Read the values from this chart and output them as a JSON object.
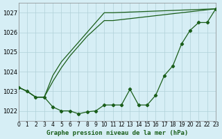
{
  "title": "Graphe pression niveau de la mer (hPa)",
  "background_color": "#d6eef5",
  "grid_color": "#b0d0d8",
  "line_color": "#1a5e1a",
  "x_labels": [
    "0",
    "1",
    "2",
    "3",
    "4",
    "5",
    "6",
    "7",
    "8",
    "9",
    "10",
    "11",
    "12",
    "13",
    "14",
    "15",
    "16",
    "17",
    "18",
    "19",
    "20",
    "21",
    "22",
    "23"
  ],
  "xlim": [
    0,
    23
  ],
  "ylim": [
    1021.5,
    1027.5
  ],
  "yticks": [
    1022,
    1023,
    1024,
    1025,
    1026,
    1027
  ],
  "series1": [
    1023.2,
    1023.0,
    1022.7,
    1022.7,
    1022.2,
    1022.0,
    1022.0,
    1021.85,
    1021.95,
    1022.0,
    1022.3,
    1022.3,
    1022.3,
    1023.1,
    1022.3,
    1022.3,
    1022.8,
    1023.8,
    1024.3,
    1025.4,
    1026.1,
    1026.5,
    1026.5,
    1027.2
  ],
  "series2": [
    1023.2,
    1023.0,
    1022.7,
    1022.7,
    1023.5,
    1024.2,
    1024.8,
    1025.3,
    1025.8,
    1026.2,
    1026.6,
    1026.6,
    1027.2
  ],
  "series2_x": [
    0,
    1,
    2,
    3,
    4,
    5,
    6,
    7,
    8,
    9,
    10,
    11,
    23
  ],
  "series3": [
    1023.2,
    1023.0,
    1022.7,
    1022.7,
    1023.8,
    1024.5,
    1025.0,
    1025.5,
    1026.0,
    1026.5,
    1027.0,
    1027.0,
    1027.2
  ],
  "series3_x": [
    0,
    1,
    2,
    3,
    4,
    5,
    6,
    7,
    8,
    9,
    10,
    11,
    23
  ]
}
